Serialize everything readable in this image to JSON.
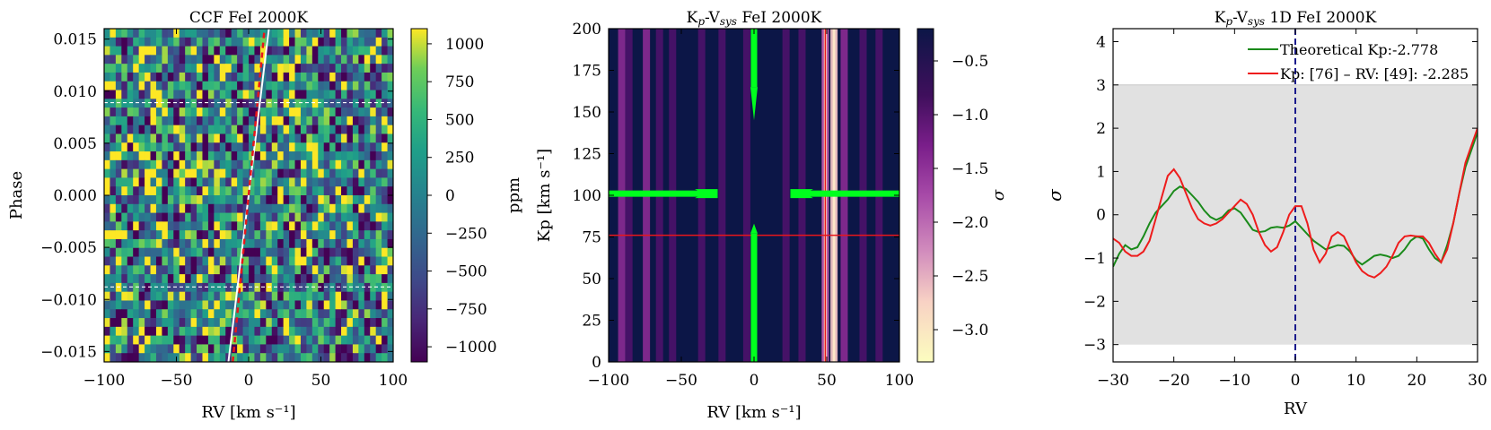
{
  "chart_data": [
    {
      "type": "heatmap",
      "title": "CCF FeI 2000K",
      "xlabel": "RV [km s⁻¹]",
      "ylabel": "Phase",
      "xlim": [
        -100,
        100
      ],
      "ylim": [
        -0.016,
        0.016
      ],
      "xticks": [
        -100,
        -50,
        0,
        50,
        100
      ],
      "yticks": [
        -0.015,
        -0.01,
        -0.005,
        0.0,
        0.005,
        0.01,
        0.015
      ],
      "ytick_labels": [
        "−0.015",
        "−0.010",
        "−0.005",
        "0.000",
        "0.005",
        "0.010",
        "0.015"
      ],
      "colorbar": {
        "label": "ppm",
        "colormap": "viridis",
        "range": [
          -1100,
          1100
        ],
        "ticks": [
          1000,
          750,
          500,
          250,
          0,
          -250,
          -500,
          -750,
          -1000
        ],
        "tick_labels": [
          "1000",
          "750",
          "500",
          "250",
          "0",
          "−250",
          "−500",
          "−750",
          "−1000"
        ]
      },
      "overlays": {
        "white_line": {
          "x": [
            -14,
            14
          ],
          "y": [
            -0.016,
            0.016
          ],
          "color": "#ffffff"
        },
        "red_dashed_line": {
          "x": [
            -11,
            11
          ],
          "y": [
            -0.016,
            0.016
          ],
          "color": "#e8161b"
        },
        "white_dashed_hlines_phase": [
          0.0089,
          -0.0088
        ]
      }
    },
    {
      "type": "heatmap",
      "title": "K",
      "title_sub": "p",
      "title_mid": "-V",
      "title_sub2": "sys",
      "title_rest": " FeI 2000K",
      "xlabel": "RV [km s⁻¹]",
      "ylabel": "Kp [km s⁻¹]",
      "xlim": [
        -100,
        100
      ],
      "ylim": [
        0,
        200
      ],
      "xticks": [
        -100,
        -50,
        0,
        50,
        100
      ],
      "yticks": [
        0,
        25,
        50,
        75,
        100,
        125,
        150,
        175,
        200
      ],
      "colorbar": {
        "label": "σ",
        "colormap": "magma-like",
        "range": [
          -3.3,
          -0.2
        ],
        "ticks": [
          -0.5,
          -1.0,
          -1.5,
          -2.0,
          -2.5,
          -3.0
        ],
        "tick_labels": [
          "−0.5",
          "−1.0",
          "−1.5",
          "−2.0",
          "−2.5",
          "−3.0"
        ]
      },
      "stripes": [
        {
          "x": -91,
          "intensity": 0.42
        },
        {
          "x": -86,
          "intensity": 0.35
        },
        {
          "x": -74,
          "intensity": 0.55
        },
        {
          "x": -65,
          "intensity": 0.3
        },
        {
          "x": -56,
          "intensity": 0.28
        },
        {
          "x": -36,
          "intensity": 0.33
        },
        {
          "x": -22,
          "intensity": 0.25
        },
        {
          "x": -5,
          "intensity": 0.3
        },
        {
          "x": 22,
          "intensity": 0.3
        },
        {
          "x": 33,
          "intensity": 0.38
        },
        {
          "x": 49,
          "intensity": 0.75
        },
        {
          "x": 55,
          "intensity": 0.95
        },
        {
          "x": 62,
          "intensity": 0.45
        },
        {
          "x": 75,
          "intensity": 0.3
        },
        {
          "x": 86,
          "intensity": 0.35
        }
      ],
      "overlays": {
        "red_crosshair": {
          "x": 49,
          "y": 76,
          "color": "#e8161b"
        },
        "green_arrows_center": {
          "x": 0,
          "y": 101,
          "color": "#00ff1e"
        }
      }
    },
    {
      "type": "line",
      "title": "K",
      "title_sub": "p",
      "title_mid": "-V",
      "title_sub2": "sys",
      "title_rest": " 1D FeI 2000K",
      "xlabel": "RV",
      "ylabel": "σ",
      "xlim": [
        -30,
        30
      ],
      "ylim": [
        -3.4,
        4.3
      ],
      "xticks": [
        -30,
        -20,
        -10,
        0,
        10,
        20,
        30
      ],
      "yticks": [
        -3,
        -2,
        -1,
        0,
        1,
        2,
        3,
        4
      ],
      "ytick_labels": [
        "−3",
        "−2",
        "−1",
        "0",
        "1",
        "2",
        "3",
        "4"
      ],
      "shaded_band": [
        -3,
        3
      ],
      "vline": {
        "x": 0,
        "color": "#1a1a8c"
      },
      "legend_position": "top-right",
      "series": [
        {
          "name": "Theoretical Kp:-2.778",
          "color": "#1a8a1a",
          "x": [
            -30,
            -29,
            -28,
            -27,
            -26,
            -25,
            -24,
            -23,
            -22,
            -21,
            -20,
            -19,
            -18,
            -17,
            -16,
            -15,
            -14,
            -13,
            -12,
            -11,
            -10,
            -9,
            -8,
            -7,
            -6,
            -5,
            -4,
            -3,
            -2,
            -1,
            0,
            1,
            2,
            3,
            4,
            5,
            6,
            7,
            8,
            9,
            10,
            11,
            12,
            13,
            14,
            15,
            16,
            17,
            18,
            19,
            20,
            21,
            22,
            23,
            24,
            25,
            26,
            27,
            28,
            29,
            30
          ],
          "values": [
            -1.2,
            -0.9,
            -0.7,
            -0.8,
            -0.75,
            -0.5,
            -0.2,
            0.05,
            0.2,
            0.35,
            0.55,
            0.65,
            0.6,
            0.45,
            0.3,
            0.1,
            -0.05,
            -0.12,
            -0.05,
            0.1,
            0.15,
            0.05,
            -0.15,
            -0.35,
            -0.4,
            -0.38,
            -0.3,
            -0.28,
            -0.3,
            -0.25,
            -0.15,
            -0.3,
            -0.45,
            -0.6,
            -0.7,
            -0.8,
            -0.75,
            -0.7,
            -0.72,
            -0.85,
            -1.05,
            -1.15,
            -1.05,
            -0.95,
            -0.92,
            -0.95,
            -1.0,
            -0.95,
            -0.8,
            -0.6,
            -0.5,
            -0.55,
            -0.8,
            -1.0,
            -1.1,
            -0.7,
            -0.2,
            0.5,
            1.1,
            1.5,
            1.9
          ]
        },
        {
          "name": "Kp: [76] – RV: [49]: -2.285",
          "color": "#ee1c1c",
          "x": [
            -30,
            -29,
            -28,
            -27,
            -26,
            -25,
            -24,
            -23,
            -22,
            -21,
            -20,
            -19,
            -18,
            -17,
            -16,
            -15,
            -14,
            -13,
            -12,
            -11,
            -10,
            -9,
            -8,
            -7,
            -6,
            -5,
            -4,
            -3,
            -2,
            -1,
            0,
            1,
            2,
            3,
            4,
            5,
            6,
            7,
            8,
            9,
            10,
            11,
            12,
            13,
            14,
            15,
            16,
            17,
            18,
            19,
            20,
            21,
            22,
            23,
            24,
            25,
            26,
            27,
            28,
            29,
            30
          ],
          "values": [
            -0.55,
            -0.65,
            -0.85,
            -0.95,
            -0.95,
            -0.85,
            -0.6,
            -0.1,
            0.4,
            0.9,
            1.05,
            0.85,
            0.5,
            0.15,
            -0.1,
            -0.2,
            -0.25,
            -0.2,
            -0.1,
            0.05,
            0.2,
            0.35,
            0.25,
            0.0,
            -0.4,
            -0.7,
            -0.85,
            -0.75,
            -0.4,
            0.0,
            0.2,
            0.2,
            -0.2,
            -0.8,
            -1.1,
            -0.9,
            -0.5,
            -0.4,
            -0.5,
            -0.8,
            -1.1,
            -1.3,
            -1.4,
            -1.45,
            -1.35,
            -1.2,
            -0.95,
            -0.65,
            -0.5,
            -0.48,
            -0.5,
            -0.5,
            -0.65,
            -0.9,
            -1.1,
            -0.8,
            -0.2,
            0.5,
            1.2,
            1.6,
            2.0
          ]
        }
      ]
    }
  ]
}
